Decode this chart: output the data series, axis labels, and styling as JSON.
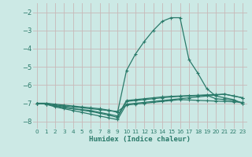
{
  "background_color": "#cce9e5",
  "grid_color": "#c8b8b8",
  "line_color": "#2a7a6a",
  "xlabel": "Humidex (Indice chaleur)",
  "xlim": [
    -0.5,
    23.5
  ],
  "ylim": [
    -8.4,
    -1.5
  ],
  "yticks": [
    -8,
    -7,
    -6,
    -5,
    -4,
    -3,
    -2
  ],
  "xticks": [
    0,
    1,
    2,
    3,
    4,
    5,
    6,
    7,
    8,
    9,
    10,
    11,
    12,
    13,
    14,
    15,
    16,
    17,
    18,
    19,
    20,
    21,
    22,
    23
  ],
  "series": [
    {
      "x": [
        0,
        1,
        2,
        3,
        4,
        5,
        6,
        7,
        8,
        9,
        10,
        11,
        12,
        13,
        14,
        15,
        16,
        17,
        18,
        19,
        20,
        21,
        22,
        23
      ],
      "y": [
        -7.0,
        -7.0,
        -7.1,
        -7.15,
        -7.2,
        -7.25,
        -7.3,
        -7.35,
        -7.4,
        -7.45,
        -7.1,
        -7.05,
        -7.0,
        -6.95,
        -6.9,
        -6.85,
        -6.8,
        -6.82,
        -6.84,
        -6.86,
        -6.88,
        -6.9,
        -6.92,
        -6.95
      ]
    },
    {
      "x": [
        0,
        1,
        2,
        3,
        4,
        5,
        6,
        7,
        8,
        9,
        10,
        11,
        12,
        13,
        14,
        15,
        16,
        17,
        18,
        19,
        20,
        21,
        22,
        23
      ],
      "y": [
        -7.0,
        -7.05,
        -7.15,
        -7.2,
        -7.3,
        -7.35,
        -7.4,
        -7.5,
        -7.6,
        -7.7,
        -6.85,
        -6.8,
        -6.75,
        -6.7,
        -6.65,
        -6.62,
        -6.6,
        -6.58,
        -6.56,
        -6.54,
        -6.52,
        -6.5,
        -6.6,
        -6.7
      ]
    },
    {
      "x": [
        0,
        1,
        2,
        3,
        4,
        5,
        6,
        7,
        8,
        9,
        10,
        11,
        12,
        13,
        14,
        15,
        16,
        17,
        18,
        19,
        20,
        21,
        22,
        23
      ],
      "y": [
        -7.0,
        -7.05,
        -7.15,
        -7.25,
        -7.3,
        -7.38,
        -7.45,
        -7.55,
        -7.65,
        -7.78,
        -6.9,
        -6.85,
        -6.8,
        -6.75,
        -6.7,
        -6.65,
        -6.62,
        -6.6,
        -6.58,
        -6.56,
        -6.75,
        -6.8,
        -6.85,
        -7.0
      ]
    },
    {
      "x": [
        0,
        1,
        2,
        3,
        4,
        5,
        6,
        7,
        8,
        9,
        10,
        11,
        12,
        13,
        14,
        15,
        16,
        17,
        18,
        19,
        20,
        21,
        22,
        23
      ],
      "y": [
        -7.0,
        -7.05,
        -7.2,
        -7.3,
        -7.4,
        -7.5,
        -7.6,
        -7.7,
        -7.8,
        -7.9,
        -7.05,
        -7.0,
        -6.95,
        -6.9,
        -6.85,
        -6.8,
        -6.75,
        -6.7,
        -6.65,
        -6.6,
        -6.55,
        -6.5,
        -6.6,
        -6.7
      ]
    },
    {
      "x": [
        0,
        1,
        2,
        3,
        4,
        5,
        6,
        7,
        8,
        9,
        10,
        11,
        12,
        13,
        14,
        15,
        16,
        17,
        18,
        19,
        20,
        21,
        22,
        23
      ],
      "y": [
        -7.0,
        -7.0,
        -7.05,
        -7.1,
        -7.15,
        -7.2,
        -7.25,
        -7.3,
        -7.38,
        -7.5,
        -5.2,
        -4.3,
        -3.6,
        -3.0,
        -2.5,
        -2.3,
        -2.3,
        -4.6,
        -5.35,
        -6.2,
        -6.6,
        -6.7,
        -6.8,
        -7.0
      ]
    }
  ]
}
